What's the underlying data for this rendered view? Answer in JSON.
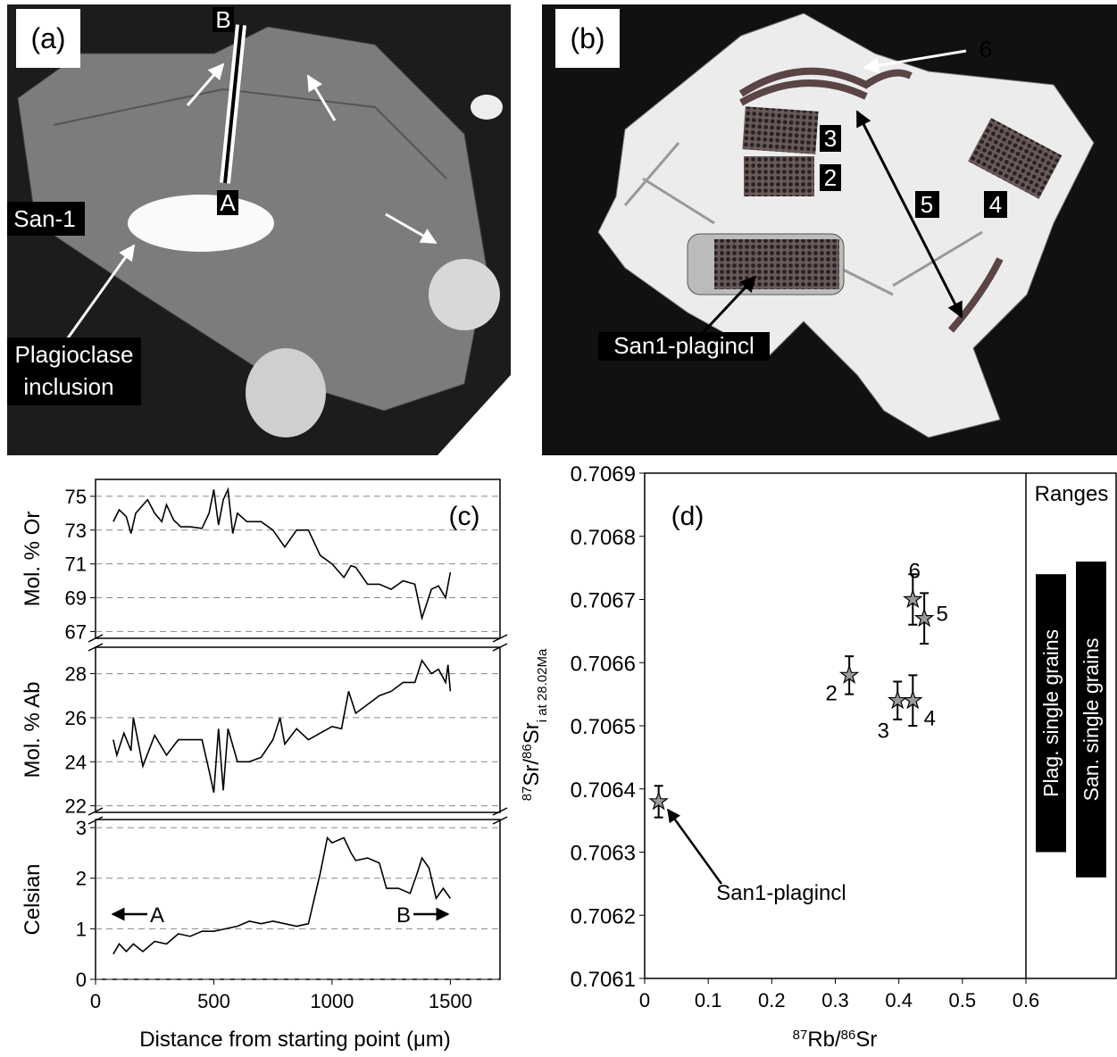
{
  "photo_a": {
    "panel_label": "(a)",
    "end_b": "B",
    "end_a": "A",
    "crystal": "San-1",
    "inclusion": [
      "Plagioclase",
      "inclusion"
    ]
  },
  "photo_b": {
    "panel_label": "(b)",
    "spots": [
      "6",
      "3",
      "2",
      "4",
      "5"
    ],
    "inclusion": "San1-plagincl"
  },
  "chart_data": [
    {
      "type": "line",
      "panel_label": "(c)",
      "ylabel": "Mol. % Or",
      "color": "#000000",
      "grid": true,
      "xlim": [
        0,
        1710
      ],
      "ylim": [
        66.6,
        76
      ],
      "yticks": [
        67,
        69,
        71,
        73,
        75
      ],
      "x": [
        75,
        100,
        130,
        150,
        170,
        220,
        250,
        280,
        300,
        330,
        360,
        400,
        450,
        480,
        500,
        520,
        540,
        560,
        580,
        600,
        640,
        700,
        750,
        800,
        850,
        900,
        950,
        1000,
        1050,
        1080,
        1100,
        1150,
        1200,
        1250,
        1300,
        1350,
        1380,
        1420,
        1450,
        1480,
        1500
      ],
      "values": [
        73.5,
        74.2,
        73.8,
        72.8,
        74,
        74.8,
        74,
        73.5,
        74.5,
        73.6,
        73.2,
        73.2,
        73.1,
        74,
        75.4,
        73.3,
        74.8,
        75.4,
        72.8,
        74,
        73.5,
        73.5,
        73,
        72,
        73,
        73,
        71.5,
        71,
        70.2,
        70.9,
        70.8,
        69.8,
        69.8,
        69.5,
        70,
        69.8,
        67.8,
        69.5,
        69.7,
        69,
        70.5
      ]
    },
    {
      "type": "line",
      "ylabel": "Mol. % Ab",
      "color": "#000000",
      "grid": true,
      "xlim": [
        0,
        1710
      ],
      "ylim": [
        21.7,
        29.2
      ],
      "yticks": [
        22,
        24,
        26,
        28
      ],
      "x": [
        75,
        90,
        120,
        150,
        160,
        200,
        250,
        300,
        350,
        400,
        450,
        480,
        500,
        520,
        540,
        560,
        600,
        650,
        700,
        750,
        780,
        800,
        850,
        900,
        950,
        1000,
        1040,
        1070,
        1100,
        1150,
        1200,
        1250,
        1300,
        1350,
        1380,
        1420,
        1450,
        1480,
        1490,
        1500
      ],
      "values": [
        25,
        24.3,
        25.3,
        24.5,
        26,
        23.8,
        25.2,
        24.3,
        25,
        25,
        25,
        23.6,
        22.6,
        25.5,
        22.7,
        25.5,
        24,
        24,
        24.2,
        25,
        26,
        24.8,
        25.5,
        25,
        25.3,
        25.6,
        25.5,
        27.2,
        26.2,
        26.6,
        27,
        27.2,
        27.6,
        27.6,
        28.6,
        28,
        28.2,
        27.6,
        28.4,
        27.2
      ]
    },
    {
      "type": "line",
      "ylabel": "Celsian",
      "xlabel": "Distance from starting point (μm)",
      "start_label": "A",
      "end_label": "B",
      "color": "#000000",
      "grid": true,
      "xlim": [
        0,
        1710
      ],
      "ylim": [
        0,
        3.16
      ],
      "yticks": [
        0,
        1,
        2,
        3
      ],
      "xticks": [
        0,
        500,
        1000,
        1500
      ],
      "x": [
        75,
        100,
        130,
        160,
        200,
        250,
        300,
        350,
        400,
        450,
        500,
        550,
        600,
        650,
        700,
        750,
        800,
        850,
        900,
        950,
        980,
        1000,
        1050,
        1080,
        1100,
        1150,
        1200,
        1230,
        1280,
        1330,
        1360,
        1380,
        1410,
        1440,
        1470,
        1500
      ],
      "values": [
        0.5,
        0.7,
        0.55,
        0.7,
        0.55,
        0.75,
        0.7,
        0.9,
        0.85,
        0.95,
        0.95,
        1,
        1.05,
        1.15,
        1.1,
        1.15,
        1.1,
        1.05,
        1.1,
        2.1,
        2.8,
        2.7,
        2.8,
        2.5,
        2.35,
        2.4,
        2.3,
        1.8,
        1.8,
        1.7,
        2.1,
        2.4,
        2.2,
        1.6,
        1.8,
        1.6
      ]
    },
    {
      "type": "scatter",
      "panel_label": "(d)",
      "xlabel": {
        "sup1": "87",
        "a": "Rb/",
        "sup2": "86",
        "b": "Sr"
      },
      "ylabel": {
        "sup1": "87",
        "a": "Sr/",
        "sup2": "86",
        "b": "Sr",
        "sub": "i at 28.02Ma"
      },
      "xlim": [
        0,
        0.6
      ],
      "ylim": [
        0.7061,
        0.7069
      ],
      "xticks": [
        0,
        0.1,
        0.2,
        0.3,
        0.4,
        0.5,
        0.6
      ],
      "yticks": [
        0.7061,
        0.7062,
        0.7063,
        0.7064,
        0.7065,
        0.7066,
        0.7067,
        0.7068,
        0.7069
      ],
      "series": [
        {
          "color": "#9a9a9a",
          "labels": [
            "San1-plagincl",
            "2",
            "3",
            "4",
            "5",
            "6"
          ],
          "x": [
            0.022,
            0.322,
            0.398,
            0.422,
            0.44,
            0.422
          ],
          "values": [
            0.70638,
            0.70658,
            0.70654,
            0.70654,
            0.70667,
            0.7067
          ],
          "err": [
            2.5e-05,
            3e-05,
            3e-05,
            4e-05,
            4e-05,
            4e-05
          ]
        }
      ],
      "range_title": "Ranges",
      "ranges": [
        {
          "name": "Plag. single grains",
          "lo": 0.7063,
          "hi": 0.70674,
          "color": "#000000"
        },
        {
          "name": "San. single grains",
          "lo": 0.70626,
          "hi": 0.70676,
          "color": "#000000"
        }
      ]
    }
  ]
}
